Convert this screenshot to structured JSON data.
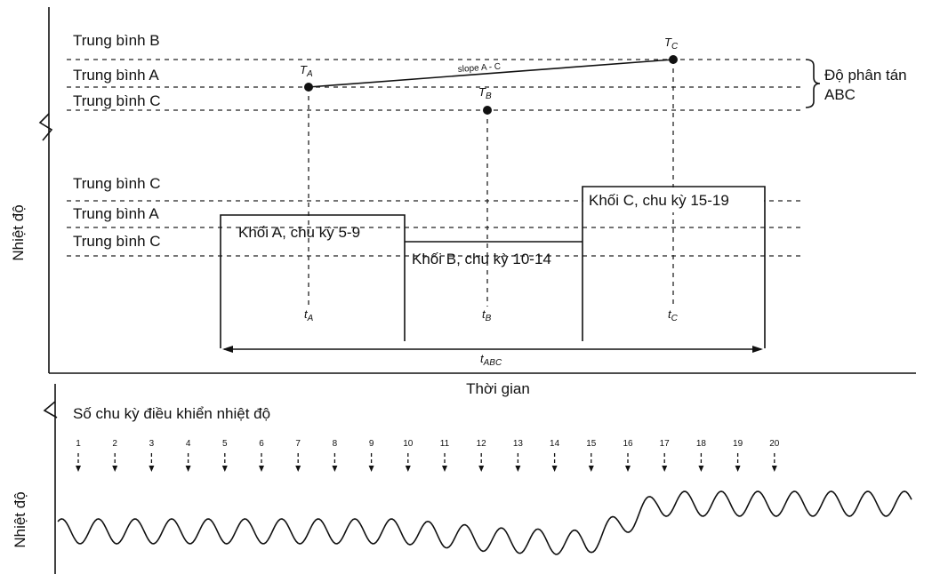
{
  "top_panel": {
    "y_axis_label": "Nhiệt độ",
    "x_axis_label": "Thời gian",
    "reference_lines": [
      {
        "label": "Trung bình B"
      },
      {
        "label": "Trung bình A"
      },
      {
        "label": "Trung bình C"
      }
    ],
    "points": [
      {
        "label": "T",
        "sub": "A"
      },
      {
        "label": "T",
        "sub": "B"
      },
      {
        "label": "T",
        "sub": "C"
      }
    ],
    "slope_label": "slope A - C",
    "dispersion_label_line1": "Độ phân tán",
    "dispersion_label_line2": "ABC",
    "block_levels": [
      {
        "label": "Trung bình C"
      },
      {
        "label": "Trung bình A"
      },
      {
        "label": "Trung bình C"
      }
    ],
    "blocks": [
      {
        "label": "Khối A, chu kỳ 5-9"
      },
      {
        "label": "Khối B, chu kỳ 10-14"
      },
      {
        "label": "Khối C, chu kỳ 15-19"
      }
    ],
    "time_marks": [
      {
        "label": "t",
        "sub": "A"
      },
      {
        "label": "t",
        "sub": "B"
      },
      {
        "label": "t",
        "sub": "C"
      }
    ],
    "span_label": {
      "label": "t",
      "sub": "ABC"
    }
  },
  "bottom_panel": {
    "y_axis_label": "Nhiệt độ",
    "cycles_label": "Số chu kỳ điều khiển nhiệt độ",
    "cycle_numbers": [
      "1",
      "2",
      "3",
      "4",
      "5",
      "6",
      "7",
      "8",
      "9",
      "10",
      "11",
      "12",
      "13",
      "14",
      "15",
      "16",
      "17",
      "18",
      "19",
      "20"
    ]
  }
}
